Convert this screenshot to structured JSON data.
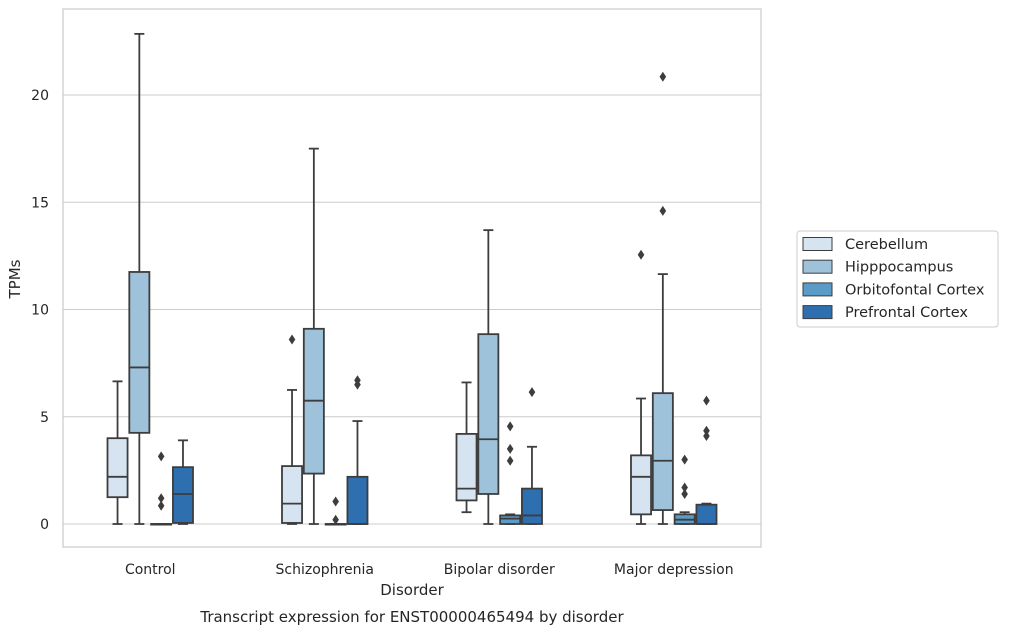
{
  "chart_data": {
    "type": "box",
    "title": "",
    "xlabel": "Disorder",
    "ylabel": "TPMs",
    "caption": "Transcript expression for ENST00000465494 by disorder",
    "ylim": [
      -1.1,
      24.1
    ],
    "yticks": [
      0,
      5,
      10,
      15,
      20
    ],
    "grid": "horizontal",
    "legend_position": "right",
    "categories": [
      "Control",
      "Schizophrenia",
      "Bipolar disorder",
      "Major depression"
    ],
    "series": [
      {
        "name": "Cerebellum",
        "color": "#d6e4f2",
        "boxes": [
          {
            "whislo": 0.0,
            "q1": 1.25,
            "med": 2.2,
            "q3": 4.0,
            "whishi": 6.65,
            "fliers": []
          },
          {
            "whislo": 0.0,
            "q1": 0.05,
            "med": 0.95,
            "q3": 2.7,
            "whishi": 6.25,
            "fliers": [
              8.6
            ]
          },
          {
            "whislo": 0.55,
            "q1": 1.1,
            "med": 1.65,
            "q3": 4.2,
            "whishi": 6.6,
            "fliers": []
          },
          {
            "whislo": 0.0,
            "q1": 0.45,
            "med": 2.2,
            "q3": 3.2,
            "whishi": 5.85,
            "fliers": [
              12.55
            ]
          }
        ]
      },
      {
        "name": "Hipppocampus",
        "color": "#9ec2da",
        "boxes": [
          {
            "whislo": 0.0,
            "q1": 4.25,
            "med": 7.3,
            "q3": 11.75,
            "whishi": 22.85,
            "fliers": []
          },
          {
            "whislo": 0.0,
            "q1": 2.35,
            "med": 5.75,
            "q3": 9.1,
            "whishi": 17.5,
            "fliers": []
          },
          {
            "whislo": 0.0,
            "q1": 1.4,
            "med": 3.95,
            "q3": 8.85,
            "whishi": 13.7,
            "fliers": []
          },
          {
            "whislo": 0.0,
            "q1": 0.65,
            "med": 2.95,
            "q3": 6.1,
            "whishi": 11.65,
            "fliers": [
              14.6,
              20.85
            ]
          }
        ]
      },
      {
        "name": "Orbitofontal Cortex",
        "color": "#5a9bc8",
        "boxes": [
          {
            "whislo": 0.0,
            "q1": 0.0,
            "med": 0.0,
            "q3": 0.0,
            "whishi": 0.0,
            "fliers": [
              0.85,
              1.2,
              3.15
            ]
          },
          {
            "whislo": 0.0,
            "q1": 0.0,
            "med": 0.0,
            "q3": 0.0,
            "whishi": 0.0,
            "fliers": [
              0.2,
              1.05
            ]
          },
          {
            "whislo": 0.0,
            "q1": 0.0,
            "med": 0.25,
            "q3": 0.4,
            "whishi": 0.45,
            "fliers": [
              2.95,
              3.5,
              4.55
            ]
          },
          {
            "whislo": 0.0,
            "q1": 0.0,
            "med": 0.2,
            "q3": 0.45,
            "whishi": 0.55,
            "fliers": [
              1.4,
              1.7,
              3.0
            ]
          }
        ]
      },
      {
        "name": "Prefrontal Cortex",
        "color": "#2e6fb0",
        "boxes": [
          {
            "whislo": 0.0,
            "q1": 0.05,
            "med": 1.4,
            "q3": 2.65,
            "whishi": 3.9,
            "fliers": []
          },
          {
            "whislo": 0.0,
            "q1": 0.0,
            "med": 0.0,
            "q3": 2.2,
            "whishi": 4.8,
            "fliers": [
              6.5,
              6.7
            ]
          },
          {
            "whislo": 0.0,
            "q1": 0.0,
            "med": 0.4,
            "q3": 1.65,
            "whishi": 3.6,
            "fliers": [
              6.15
            ]
          },
          {
            "whislo": 0.0,
            "q1": 0.0,
            "med": 0.0,
            "q3": 0.9,
            "whishi": 0.95,
            "fliers": [
              4.1,
              4.35,
              5.75
            ]
          }
        ]
      }
    ]
  }
}
